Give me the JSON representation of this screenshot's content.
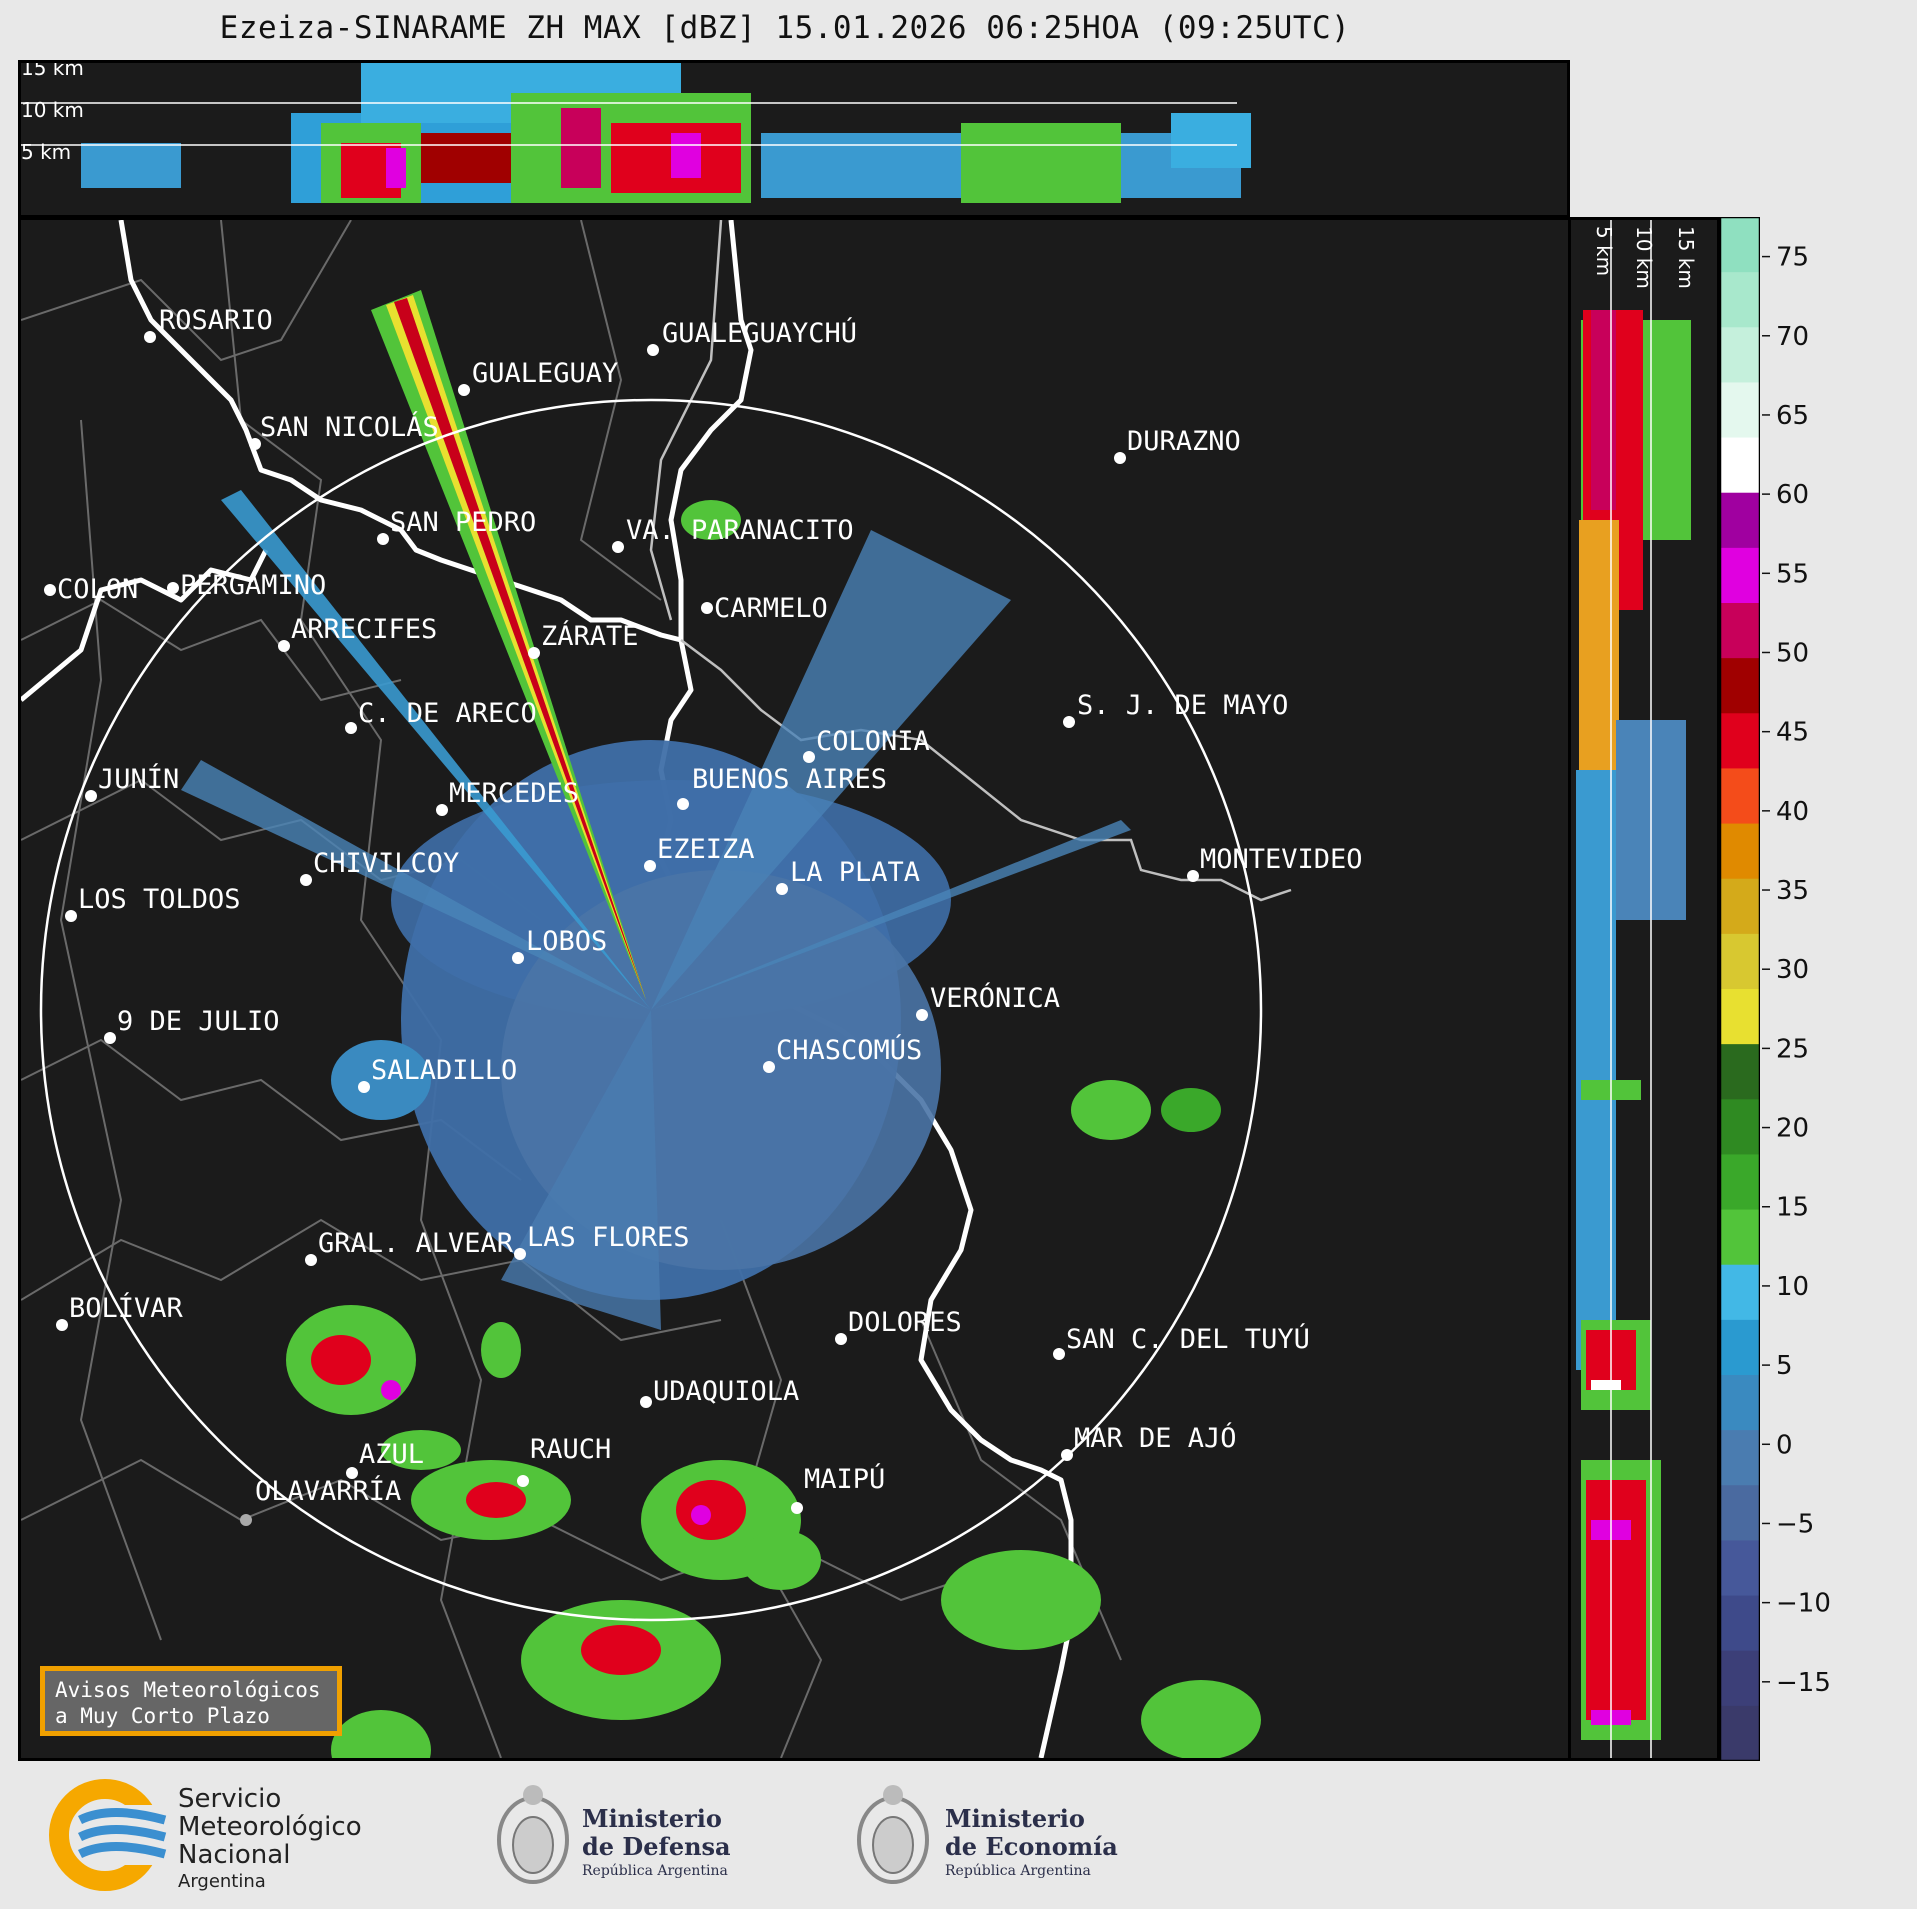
{
  "title": "Ezeiza-SINARAME ZH MAX [dBZ] 15.01.2026 06:25HOA (09:25UTC)",
  "top_profile": {
    "altitudes": [
      "15 km",
      "10 km",
      "5 km"
    ]
  },
  "side_profile": {
    "altitudes": [
      "5 km",
      "10 km",
      "15 km"
    ]
  },
  "colorbar": {
    "ticks": [
      "75",
      "70",
      "65",
      "60",
      "55",
      "50",
      "45",
      "40",
      "35",
      "30",
      "25",
      "20",
      "15",
      "10",
      "5",
      "0",
      "−5",
      "−10",
      "−15"
    ],
    "colors": [
      "#8fe0c0",
      "#a8e8cc",
      "#c5f0dc",
      "#e4f8ee",
      "#ffffff",
      "#a000a0",
      "#e000e0",
      "#c8005a",
      "#a00000",
      "#e0001c",
      "#f44c1a",
      "#e08a00",
      "#d4aa1a",
      "#d8c830",
      "#e8e030",
      "#2a6a1e",
      "#2f8a22",
      "#3aa82a",
      "#52c43a",
      "#42b8e6",
      "#2a9ad0",
      "#3a8ac0",
      "#4a7cb0",
      "#4a6aa0",
      "#46589a",
      "#3e4a8a",
      "#3c3f78",
      "#3a3a6a"
    ]
  },
  "cities": [
    {
      "name": "ROSARIO"
    },
    {
      "name": "GUALEGUAYCHÚ"
    },
    {
      "name": "GUALEGUAY"
    },
    {
      "name": "SAN NICOLÁS"
    },
    {
      "name": "DURAZNO"
    },
    {
      "name": "SAN PEDRO"
    },
    {
      "name": "VA. PARANACITO"
    },
    {
      "name": "COLON"
    },
    {
      "name": "PERGAMINO"
    },
    {
      "name": "CARMELO"
    },
    {
      "name": "ARRECIFES"
    },
    {
      "name": "ZÁRATE"
    },
    {
      "name": "S. J. DE MAYO"
    },
    {
      "name": "C. DE ARECO"
    },
    {
      "name": "COLONIA"
    },
    {
      "name": "JUNÍN"
    },
    {
      "name": "BUENOS AIRES"
    },
    {
      "name": "MERCEDES"
    },
    {
      "name": "EZEIZA"
    },
    {
      "name": "MONTEVIDEO"
    },
    {
      "name": "CHIVILCOY"
    },
    {
      "name": "LA PLATA"
    },
    {
      "name": "LOS TOLDOS"
    },
    {
      "name": "LOBOS"
    },
    {
      "name": "VERÓNICA"
    },
    {
      "name": "9 DE JULIO"
    },
    {
      "name": "CHASCOMÚS"
    },
    {
      "name": "SALADILLO"
    },
    {
      "name": "GRAL. ALVEAR"
    },
    {
      "name": "LAS FLORES"
    },
    {
      "name": "BOLÍVAR"
    },
    {
      "name": "DOLORES"
    },
    {
      "name": "SAN C. DEL TUYÚ"
    },
    {
      "name": "UDAQUIOLA"
    },
    {
      "name": "AZUL"
    },
    {
      "name": "RAUCH"
    },
    {
      "name": "MAR DE AJÓ"
    },
    {
      "name": "MAIPÚ"
    },
    {
      "name": "OLAVARRÍA"
    }
  ],
  "avisos": {
    "line1": "Avisos Meteorológicos",
    "line2": "a Muy Corto Plazo"
  },
  "footer": {
    "smn": {
      "line1": "Servicio",
      "line2": "Meteorológico",
      "line3": "Nacional",
      "line4": "Argentina"
    },
    "defensa": {
      "line1": "Ministerio",
      "line2": "de Defensa",
      "line3": "República Argentina"
    },
    "economia": {
      "line1": "Ministerio",
      "line2": "de Economía",
      "line3": "República Argentina"
    }
  }
}
